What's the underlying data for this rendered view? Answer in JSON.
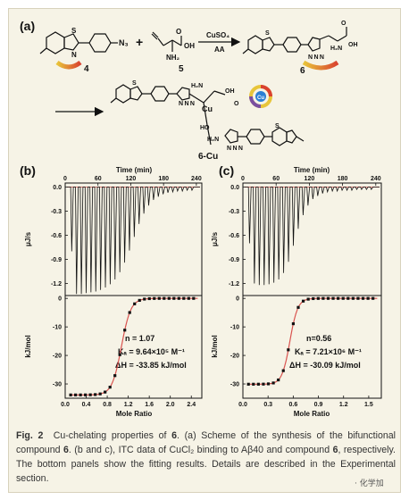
{
  "scheme": {
    "panel_label": "(a)",
    "reagent_4_group": "N₃",
    "reagent_5_nh2": "NH₂",
    "reagent_5_oh": "OH",
    "reagent_5_o": "O",
    "conditions_top": "CuSO₄",
    "conditions_bottom": "AA",
    "label_4": "4",
    "label_5": "5",
    "label_6": "6",
    "label_6cu": "6-Cu",
    "plus": "+",
    "metal": "Cu",
    "atom_S": "S",
    "atom_N": "N",
    "triazole": "N N N",
    "ho": "HO",
    "h2n": "H₂N",
    "oh": "OH",
    "o": "O"
  },
  "panel_b": {
    "label": "(b)",
    "top_xlabel": "Time (min)",
    "top_ylabel": "μJ/s",
    "bottom_xlabel": "Mole Ratio",
    "bottom_ylabel": "kJ/mol",
    "n_text": "n = 1.07",
    "ka_text": "Kₐ = 9.64×10⁵ M⁻¹",
    "dh_text": "ΔH = -33.85 kJ/mol"
  },
  "panel_c": {
    "label": "(c)",
    "top_xlabel": "Time (min)",
    "top_ylabel": "μJ/s",
    "bottom_xlabel": "Mole Ratio",
    "bottom_ylabel": "kJ/mol",
    "n_text": "n=0.56",
    "ka_text": "Kₐ = 7.21×10⁶ M⁻¹",
    "dh_text": "ΔH = -30.09 kJ/mol"
  },
  "chart_data": [
    {
      "type": "line",
      "panel": "(b) top",
      "xlabel": "Time (min)",
      "ylabel": "μJ/s",
      "xticks": [
        0,
        60,
        120,
        180,
        240
      ],
      "yticks": [
        0.0,
        -0.3,
        -0.6,
        -0.9,
        -1.2
      ],
      "xlim": [
        0,
        250
      ],
      "ylim": [
        -1.35,
        0.05
      ],
      "injection_start_min": 10,
      "injection_interval_min": 8.8,
      "peak_minima": [
        -0.8,
        -1.33,
        -1.33,
        -1.32,
        -1.31,
        -1.3,
        -1.28,
        -1.25,
        -1.21,
        -1.15,
        -1.06,
        -0.94,
        -0.79,
        -0.62,
        -0.46,
        -0.33,
        -0.23,
        -0.16,
        -0.12,
        -0.09,
        -0.07,
        -0.06,
        -0.05,
        -0.05,
        -0.04,
        -0.04
      ]
    },
    {
      "type": "scatter",
      "panel": "(b) bottom",
      "xlabel": "Mole Ratio",
      "ylabel": "kJ/mol",
      "xticks": [
        0.0,
        0.4,
        0.8,
        1.2,
        1.6,
        2.0,
        2.4
      ],
      "yticks": [
        0,
        -10,
        -20,
        -30
      ],
      "xlim": [
        0,
        2.6
      ],
      "ylim": [
        -35,
        1
      ],
      "n": 1.07,
      "Ka": 964000,
      "dH_kJ_per_mol": -33.85
    },
    {
      "type": "line",
      "panel": "(c) top",
      "xlabel": "Time (min)",
      "ylabel": "μJ/s",
      "xticks": [
        0,
        60,
        120,
        180,
        240
      ],
      "yticks": [
        0.0,
        -0.3,
        -0.6,
        -0.9,
        -1.2
      ],
      "xlim": [
        0,
        250
      ],
      "ylim": [
        -1.35,
        0.05
      ],
      "injection_start_min": 10,
      "injection_interval_min": 8.8,
      "peak_minima": [
        -0.7,
        -1.2,
        -1.22,
        -1.22,
        -1.21,
        -1.19,
        -1.15,
        -1.07,
        -0.93,
        -0.73,
        -0.52,
        -0.35,
        -0.23,
        -0.15,
        -0.11,
        -0.08,
        -0.06,
        -0.05,
        -0.05,
        -0.04,
        -0.04,
        -0.04,
        -0.03,
        -0.03,
        -0.03,
        -0.03
      ]
    },
    {
      "type": "scatter",
      "panel": "(c) bottom",
      "xlabel": "Mole Ratio",
      "ylabel": "kJ/mol",
      "xticks": [
        0.0,
        0.3,
        0.6,
        0.9,
        1.2,
        1.5
      ],
      "yticks": [
        0,
        -10,
        -20,
        -30
      ],
      "xlim": [
        0,
        1.65
      ],
      "ylim": [
        -35,
        1
      ],
      "n": 0.56,
      "Ka": 7210000,
      "dH_kJ_per_mol": -30.09
    }
  ],
  "caption": {
    "fig_label": "Fig. 2",
    "text_1": "Cu-chelating properties of",
    "compound_6": "6",
    "text_2": ". (a) Scheme of the synthesis of the bifunctional compound",
    "compound_6b": "6",
    "text_3": ". (b and c), ITC data of CuCl₂ binding to Aβ40 and compound",
    "compound_6c": "6",
    "text_4": ", respectively. The bottom panels show the fitting results. Details are described in the Experimental section."
  },
  "watermark": "· 化学加",
  "colors": {
    "background": "#f6f3e6",
    "fit_line": "#d9534f",
    "accent_arrow_yellow": "#e8c53a",
    "accent_arrow_red": "#d9412f"
  }
}
